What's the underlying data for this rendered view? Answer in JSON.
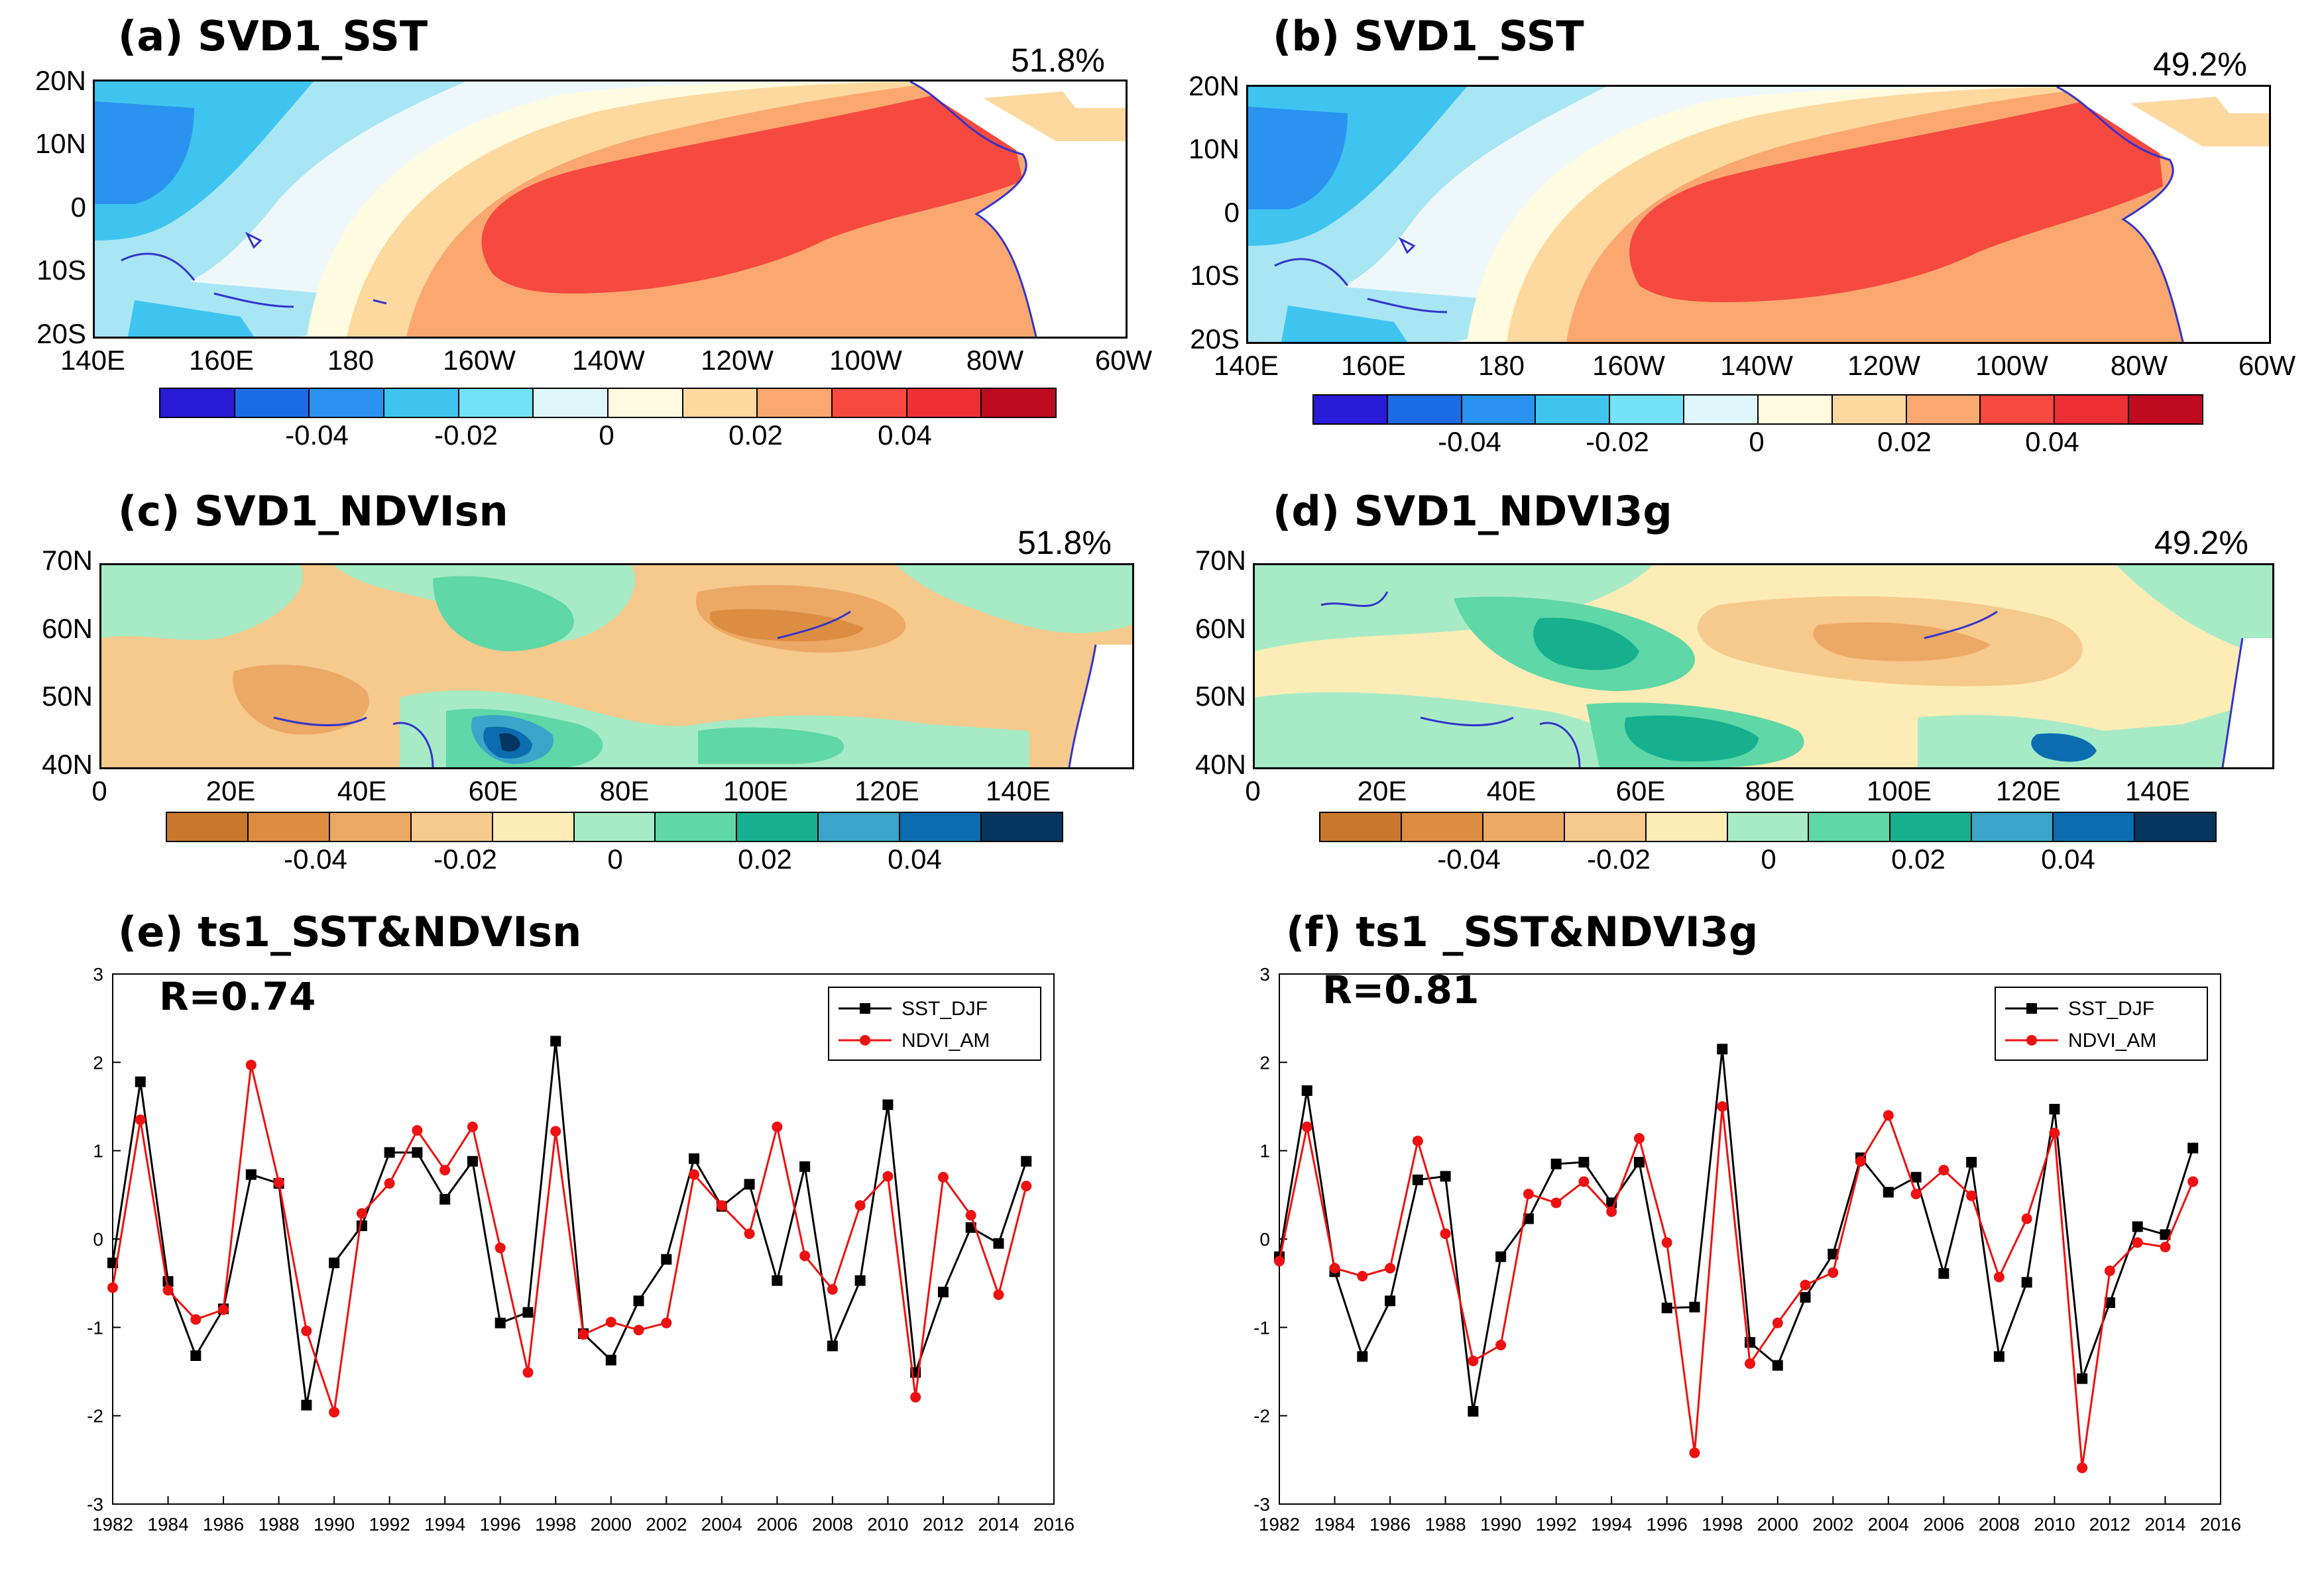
{
  "panels": {
    "a": {
      "title": "(a) SVD1_SST",
      "pct": "51.8%"
    },
    "b": {
      "title": "(b) SVD1_SST",
      "pct": "49.2%"
    },
    "c": {
      "title": "(c) SVD1_NDVIsn",
      "pct": "51.8%"
    },
    "d": {
      "title": "(d) SVD1_NDVI3g",
      "pct": "49.2%"
    },
    "e": {
      "title": "(e) ts1_SST&NDVIsn",
      "r": "R=0.74"
    },
    "f": {
      "title": "(f) ts1 _SST&NDVI3g",
      "r": "R=0.81"
    }
  },
  "sst_axes": {
    "lat": [
      "20N",
      "10N",
      "0",
      "10S",
      "20S"
    ],
    "lon": [
      "140E",
      "160E",
      "180",
      "160W",
      "140W",
      "120W",
      "100W",
      "80W",
      "60W"
    ]
  },
  "ndvi_axes": {
    "lat": [
      "70N",
      "60N",
      "50N",
      "40N"
    ],
    "lon": [
      "0",
      "20E",
      "40E",
      "60E",
      "80E",
      "100E",
      "120E",
      "140E"
    ]
  },
  "colorbar_labels": [
    "-0.04",
    "-0.02",
    "0",
    "0.02",
    "0.04"
  ],
  "sst_colors": [
    "#2a1bd6",
    "#1c6be6",
    "#2a93ef",
    "#3fc4f0",
    "#74e2f6",
    "#dff6fa",
    "#fffbe0",
    "#fdd9a0",
    "#fba870",
    "#f6493f",
    "#ed3036",
    "#be0b20"
  ],
  "ndvi_colors": [
    "#c8772c",
    "#dc8d42",
    "#eca865",
    "#f6c98c",
    "#fdecb6",
    "#a6ebc6",
    "#5fd7a6",
    "#16b08f",
    "#3aa5c8",
    "#0b6db0",
    "#05365f"
  ],
  "chart_data": [
    {
      "type": "line",
      "title": "(e) ts1_SST&NDVIsn",
      "annotation": "R=0.74",
      "x": [
        1982,
        1983,
        1984,
        1985,
        1986,
        1987,
        1988,
        1989,
        1990,
        1991,
        1992,
        1993,
        1994,
        1995,
        1996,
        1997,
        1998,
        1999,
        2000,
        2001,
        2002,
        2003,
        2004,
        2005,
        2006,
        2007,
        2008,
        2009,
        2010,
        2011,
        2012,
        2013,
        2014,
        2015
      ],
      "series": [
        {
          "name": "SST_DJF",
          "color": "#000000",
          "marker": "square",
          "values": [
            -0.27,
            1.78,
            -0.48,
            -1.32,
            -0.79,
            0.73,
            0.63,
            -1.88,
            -0.27,
            0.15,
            0.98,
            0.98,
            0.45,
            0.88,
            -0.95,
            -0.83,
            2.24,
            -1.07,
            -1.37,
            -0.7,
            -0.23,
            0.91,
            0.37,
            0.62,
            -0.47,
            0.82,
            -1.21,
            -0.47,
            1.52,
            -1.51,
            -0.6,
            0.13,
            -0.05,
            0.88
          ]
        },
        {
          "name": "NDVI_AM",
          "color": "#ee1111",
          "marker": "circle",
          "values": [
            -0.55,
            1.35,
            -0.58,
            -0.91,
            -0.8,
            1.97,
            0.64,
            -1.04,
            -1.96,
            0.29,
            0.63,
            1.23,
            0.78,
            1.27,
            -0.1,
            -1.51,
            1.22,
            -1.08,
            -0.94,
            -1.03,
            -0.95,
            0.73,
            0.38,
            0.06,
            1.27,
            -0.19,
            -0.57,
            0.38,
            0.71,
            -1.79,
            0.7,
            0.27,
            -0.63,
            0.6
          ]
        }
      ],
      "xticks": [
        1982,
        1984,
        1986,
        1988,
        1990,
        1992,
        1994,
        1996,
        1998,
        2000,
        2002,
        2004,
        2006,
        2008,
        2010,
        2012,
        2014,
        2016
      ],
      "yticks": [
        -3,
        -2,
        -1,
        0,
        1,
        2,
        3
      ],
      "xlim": [
        1982,
        2016
      ],
      "ylim": [
        -3,
        3
      ],
      "legend": "top-right"
    },
    {
      "type": "line",
      "title": "(f) ts1 _SST&NDVI3g",
      "annotation": "R=0.81",
      "x": [
        1982,
        1983,
        1984,
        1985,
        1986,
        1987,
        1988,
        1989,
        1990,
        1991,
        1992,
        1993,
        1994,
        1995,
        1996,
        1997,
        1998,
        1999,
        2000,
        2001,
        2002,
        2003,
        2004,
        2005,
        2006,
        2007,
        2008,
        2009,
        2010,
        2011,
        2012,
        2013,
        2014,
        2015
      ],
      "series": [
        {
          "name": "SST_DJF",
          "color": "#000000",
          "marker": "square",
          "values": [
            -0.2,
            1.68,
            -0.37,
            -1.33,
            -0.7,
            0.67,
            0.71,
            -1.95,
            -0.2,
            0.23,
            0.85,
            0.87,
            0.41,
            0.87,
            -0.78,
            -0.77,
            2.15,
            -1.17,
            -1.43,
            -0.66,
            -0.17,
            0.92,
            0.53,
            0.7,
            -0.39,
            0.87,
            -1.33,
            -0.49,
            1.47,
            -1.58,
            -0.72,
            0.14,
            0.05,
            1.03
          ]
        },
        {
          "name": "NDVI_AM",
          "color": "#ee1111",
          "marker": "circle",
          "values": [
            -0.25,
            1.27,
            -0.33,
            -0.42,
            -0.33,
            1.11,
            0.06,
            -1.38,
            -1.2,
            0.51,
            0.41,
            0.65,
            0.31,
            1.14,
            -0.04,
            -2.42,
            1.5,
            -1.41,
            -0.95,
            -0.52,
            -0.38,
            0.88,
            1.4,
            0.51,
            0.78,
            0.49,
            -0.43,
            0.23,
            1.2,
            -2.59,
            -0.36,
            -0.04,
            -0.09,
            0.65
          ]
        }
      ],
      "xticks": [
        1982,
        1984,
        1986,
        1988,
        1990,
        1992,
        1994,
        1996,
        1998,
        2000,
        2002,
        2004,
        2006,
        2008,
        2010,
        2012,
        2014,
        2016
      ],
      "yticks": [
        -3,
        -2,
        -1,
        0,
        1,
        2,
        3
      ],
      "xlim": [
        1982,
        2016
      ],
      "ylim": [
        -3,
        3
      ],
      "legend": "top-right"
    }
  ]
}
